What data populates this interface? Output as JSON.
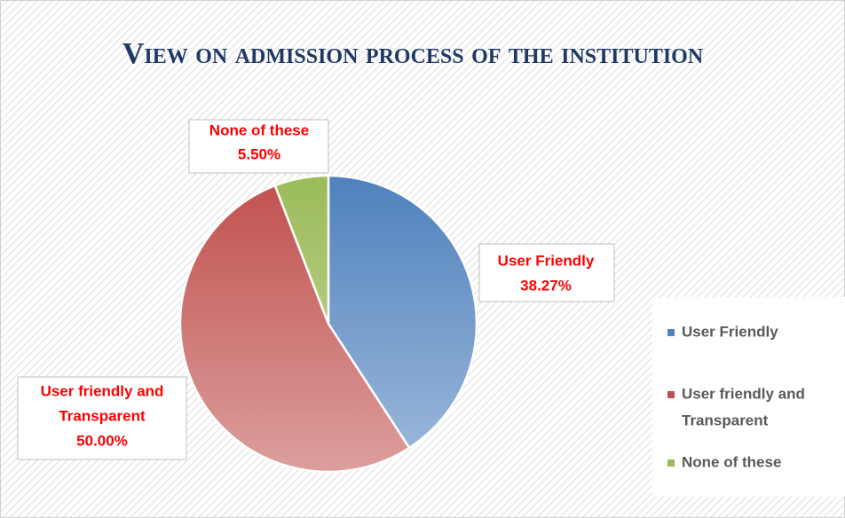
{
  "chart_data": {
    "type": "pie",
    "title": "View on admission process of the institution",
    "categories": [
      "User Friendly",
      "User friendly and Transparent",
      "None of these"
    ],
    "values": [
      38.27,
      50.0,
      5.5
    ],
    "value_labels": [
      "38.27%",
      "50.00%",
      "5.50%"
    ],
    "colors": [
      "#4f81bd",
      "#c0504d",
      "#9bbb59"
    ],
    "legend": "right"
  }
}
